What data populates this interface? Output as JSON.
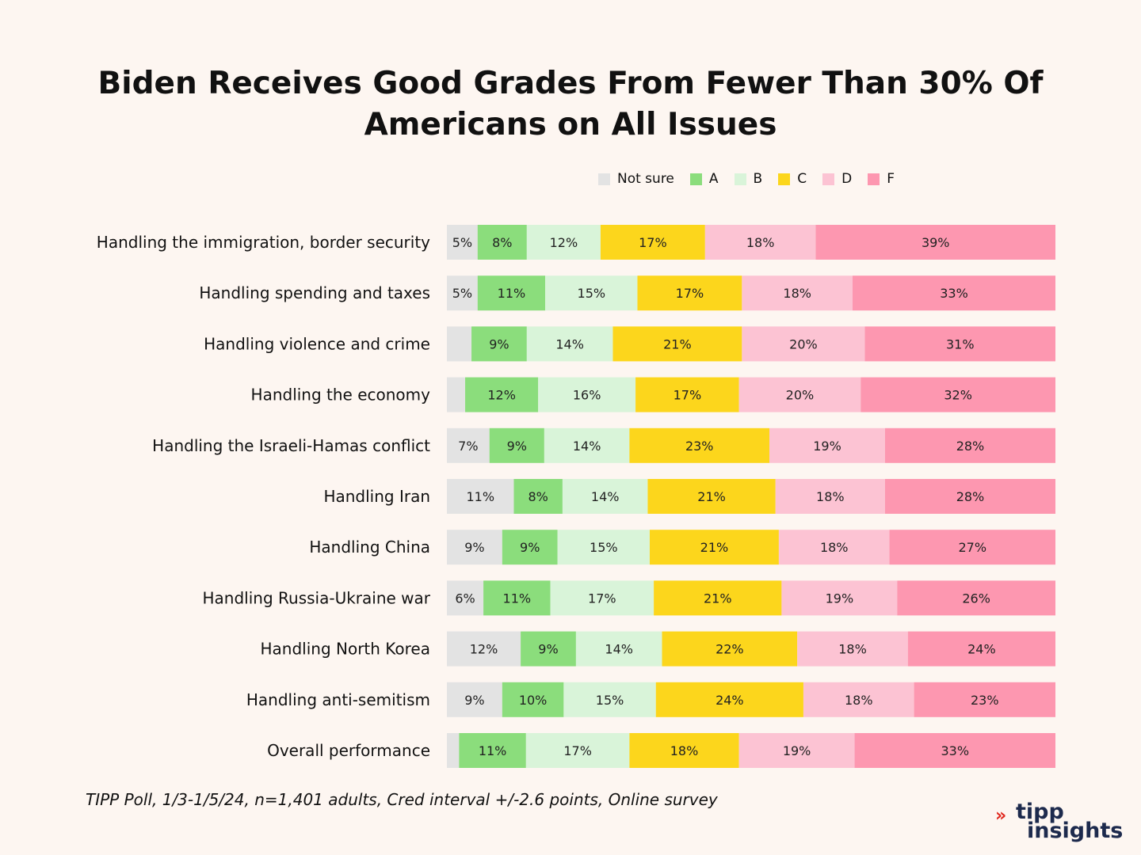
{
  "title_line1": "Biden Receives Good Grades From Fewer Than 30% Of",
  "title_line2": "Americans on All Issues",
  "footnote": "TIPP Poll, 1/3-1/5/24, n=1,401 adults, Cred interval +/-2.6 points, Online survey",
  "logo": {
    "line1": "tipp",
    "line2": "insights",
    "mark": "»"
  },
  "colors": {
    "Not sure": "#e3e3e3",
    "A": "#8bdd7c",
    "B": "#d9f4d9",
    "C": "#fcd61c",
    "D": "#fcc3d3",
    "F": "#fd97b0"
  },
  "chart_data": {
    "type": "bar",
    "orientation": "horizontal",
    "stacked": true,
    "title": "Biden Receives Good Grades From Fewer Than 30% Of Americans on All Issues",
    "xlabel": "",
    "ylabel": "",
    "xlim": [
      0,
      100
    ],
    "legend_position": "top",
    "grid": false,
    "categories": [
      "Handling the immigration, border security",
      "Handling spending and taxes",
      "Handling violence and crime",
      "Handling the economy",
      "Handling the Israeli-Hamas conflict",
      "Handling Iran",
      "Handling China",
      "Handling Russia-Ukraine war",
      "Handling North Korea",
      "Handling anti-semitism",
      "Overall performance"
    ],
    "series": [
      {
        "name": "Not sure",
        "values": [
          5,
          5,
          4,
          3,
          7,
          11,
          9,
          6,
          12,
          9,
          2
        ],
        "labels": [
          "5%",
          "5%",
          "",
          "",
          "7%",
          "11%",
          "9%",
          "6%",
          "12%",
          "9%",
          ""
        ]
      },
      {
        "name": "A",
        "values": [
          8,
          11,
          9,
          12,
          9,
          8,
          9,
          11,
          9,
          10,
          11
        ],
        "labels": [
          "8%",
          "11%",
          "9%",
          "12%",
          "9%",
          "8%",
          "9%",
          "11%",
          "9%",
          "10%",
          "11%"
        ]
      },
      {
        "name": "B",
        "values": [
          12,
          15,
          14,
          16,
          14,
          14,
          15,
          17,
          14,
          15,
          17
        ],
        "labels": [
          "12%",
          "15%",
          "14%",
          "16%",
          "14%",
          "14%",
          "15%",
          "17%",
          "14%",
          "15%",
          "17%"
        ]
      },
      {
        "name": "C",
        "values": [
          17,
          17,
          21,
          17,
          23,
          21,
          21,
          21,
          22,
          24,
          18
        ],
        "labels": [
          "17%",
          "17%",
          "21%",
          "17%",
          "23%",
          "21%",
          "21%",
          "21%",
          "22%",
          "24%",
          "18%"
        ]
      },
      {
        "name": "D",
        "values": [
          18,
          18,
          20,
          20,
          19,
          18,
          18,
          19,
          18,
          18,
          19
        ],
        "labels": [
          "18%",
          "18%",
          "20%",
          "20%",
          "19%",
          "18%",
          "18%",
          "19%",
          "18%",
          "18%",
          "19%"
        ]
      },
      {
        "name": "F",
        "values": [
          39,
          33,
          31,
          32,
          28,
          28,
          27,
          26,
          24,
          23,
          33
        ],
        "labels": [
          "39%",
          "33%",
          "31%",
          "32%",
          "28%",
          "28%",
          "27%",
          "26%",
          "24%",
          "23%",
          "33%"
        ]
      }
    ]
  }
}
